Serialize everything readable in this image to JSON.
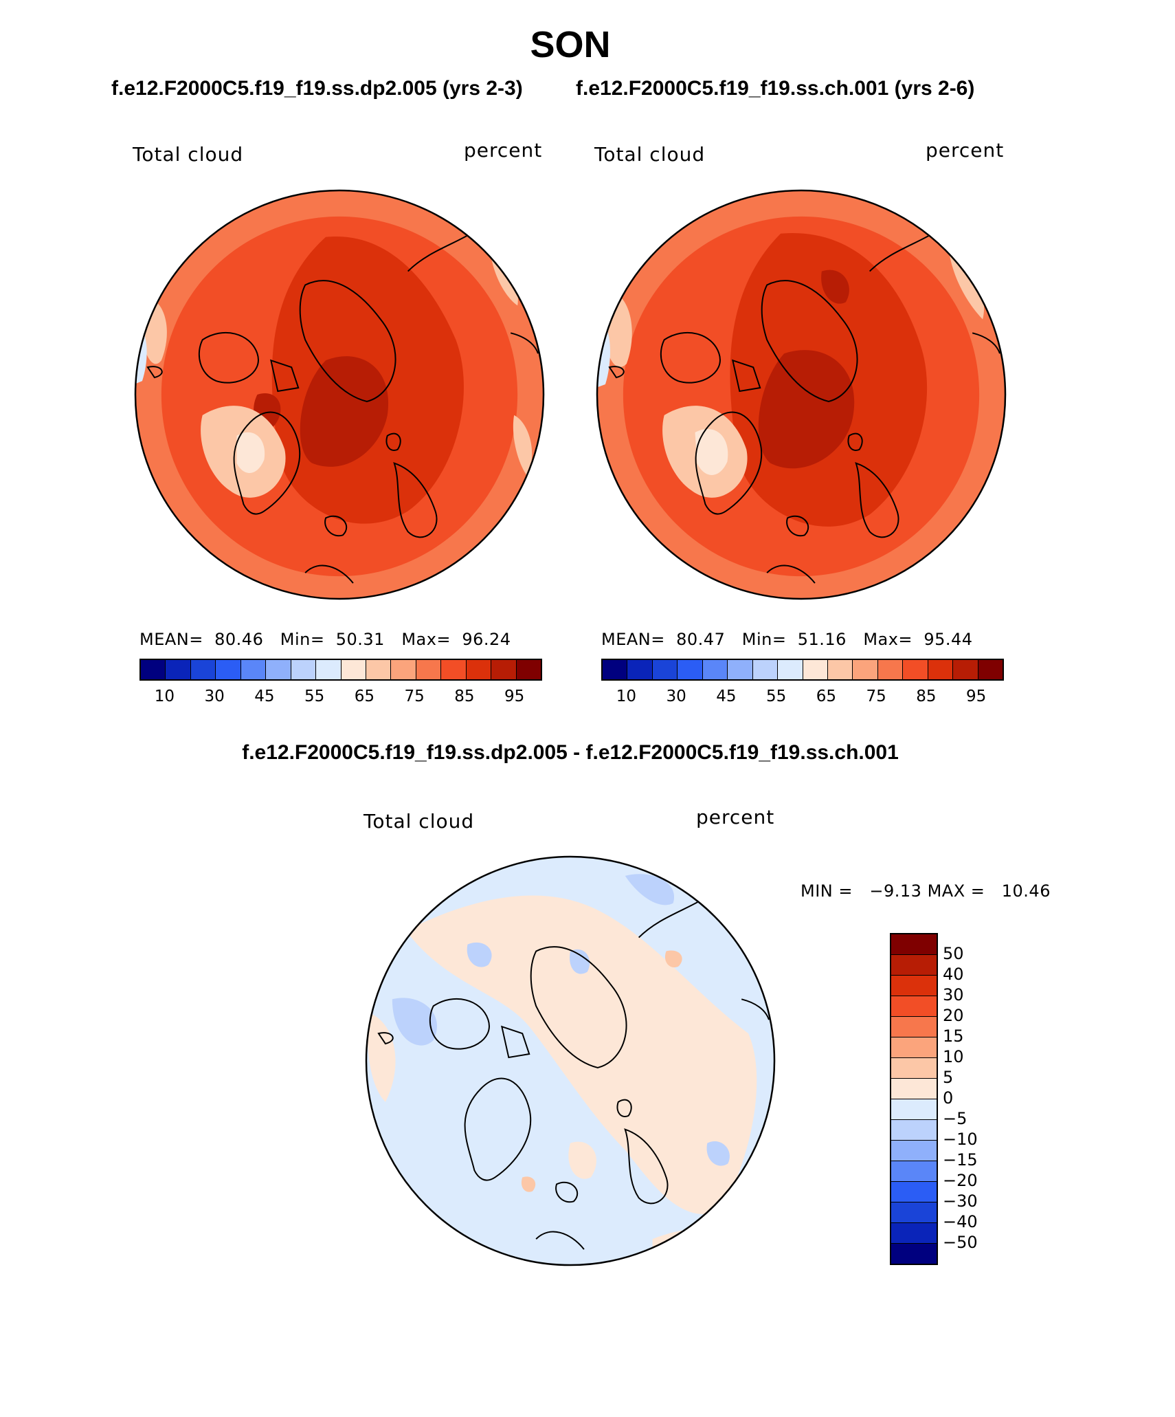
{
  "title": "SON",
  "case_a_title": "f.e12.F2000C5.f19_f19.ss.dp2.005 (yrs 2-3)",
  "case_b_title": "f.e12.F2000C5.f19_f19.ss.ch.001 (yrs 2-6)",
  "diff_title": "f.e12.F2000C5.f19_f19.ss.dp2.005 - f.e12.F2000C5.f19_f19.ss.ch.001",
  "panels": {
    "a": {
      "var_label": "Total cloud",
      "units_label": "percent",
      "stats": {
        "mean_label": "MEAN=",
        "mean": "80.46",
        "min_label": "Min=",
        "min": "50.31",
        "max_label": "Max=",
        "max": "96.24"
      }
    },
    "b": {
      "var_label": "Total cloud",
      "units_label": "percent",
      "stats": {
        "mean_label": "MEAN=",
        "mean": "80.47",
        "min_label": "Min=",
        "min": "51.16",
        "max_label": "Max=",
        "max": "95.44"
      }
    },
    "diff": {
      "var_label": "Total cloud",
      "units_label": "percent",
      "stats": {
        "min_label": "MIN =",
        "min": "−9.13",
        "max_label": "MAX =",
        "max": "10.46"
      }
    }
  },
  "colorbar_abs": {
    "tick_labels": [
      "10",
      "30",
      "45",
      "55",
      "65",
      "75",
      "85",
      "95"
    ],
    "colors": [
      "#00007f",
      "#0a24b9",
      "#1a44d8",
      "#2b5df5",
      "#5a86f8",
      "#8fb0fb",
      "#bcd2fc",
      "#dcebfd",
      "#fde7d7",
      "#fcc7a7",
      "#fba47c",
      "#f7774c",
      "#f24e26",
      "#db310b",
      "#b71d05",
      "#7f0000"
    ]
  },
  "colorbar_diff": {
    "labels": [
      "50",
      "40",
      "30",
      "20",
      "15",
      "10",
      "5",
      "0",
      "−5",
      "−10",
      "−15",
      "−20",
      "−30",
      "−40",
      "−50"
    ],
    "colors": [
      "#7f0000",
      "#b71d05",
      "#db310b",
      "#f24e26",
      "#f7774c",
      "#fba47c",
      "#fcc7a7",
      "#fde7d7",
      "#dcebfd",
      "#bcd2fc",
      "#8fb0fb",
      "#5a86f8",
      "#2b5df5",
      "#1a44d8",
      "#0a24b9",
      "#00007f"
    ]
  },
  "map_colors": {
    "a": {
      "base": "#f24e26",
      "rim": "#f7774c",
      "core": "#db310b",
      "deep": "#b71d05",
      "pale": "#fcc7a7",
      "white": "#fde7d7",
      "blue": "#dcebfd"
    },
    "b": {
      "base": "#f24e26",
      "rim": "#f7774c",
      "core": "#db310b",
      "deep": "#b71d05",
      "pale": "#fcc7a7",
      "white": "#fde7d7",
      "blue": "#dcebfd"
    },
    "diff": {
      "base": "#dcebfd",
      "pos": "#fde7d7",
      "neg": "#bcd2fc",
      "pos2": "#fcc7a7"
    }
  }
}
